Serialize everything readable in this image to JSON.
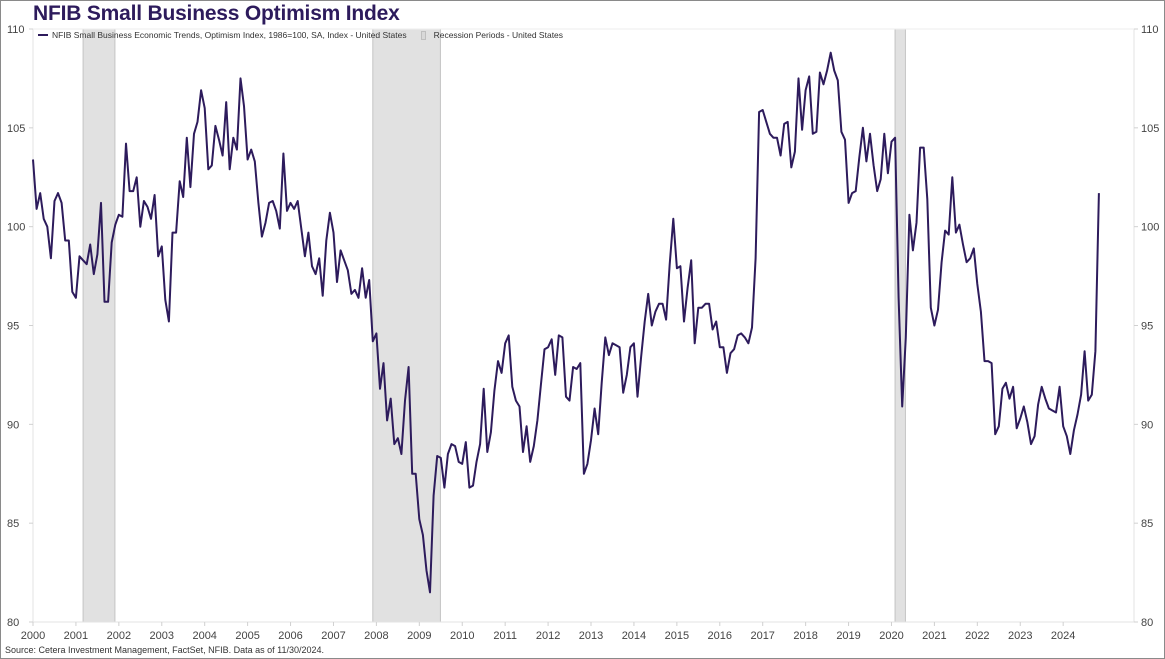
{
  "chart_data": {
    "type": "line",
    "title": "NFIB Small Business Optimism Index",
    "xlabel": "",
    "ylabel": "",
    "ylim": [
      80,
      110
    ],
    "yticks": [
      "80",
      "85",
      "90",
      "95",
      "100",
      "105",
      "110"
    ],
    "xticks": [
      "2000",
      "2001",
      "2002",
      "2003",
      "2004",
      "2005",
      "2006",
      "2007",
      "2008",
      "2009",
      "2010",
      "2011",
      "2012",
      "2013",
      "2014",
      "2015",
      "2016",
      "2017",
      "2018",
      "2019",
      "2020",
      "2021",
      "2022",
      "2023",
      "2024"
    ],
    "x_start": "2000-01",
    "x_frequency": "monthly",
    "grid": false,
    "legend_position": "top-left",
    "legend": [
      {
        "label": "NFIB Small Business Economic Trends, Optimism Index, 1986=100, SA, Index - United States",
        "type": "line"
      },
      {
        "label": "Recession Periods - United States",
        "type": "shade"
      }
    ],
    "recessions": [
      {
        "start": "2001-03",
        "end": "2001-11"
      },
      {
        "start": "2007-12",
        "end": "2009-06"
      },
      {
        "start": "2020-02",
        "end": "2020-04"
      }
    ],
    "series": [
      {
        "name": "NFIB Small Business Economic Trends, Optimism Index, 1986=100, SA, Index - United States",
        "color": "#2d1b5c",
        "values": [
          103.4,
          100.9,
          101.7,
          100.4,
          100.0,
          98.4,
          101.3,
          101.7,
          101.2,
          99.3,
          99.3,
          96.7,
          96.4,
          98.5,
          98.3,
          98.1,
          99.1,
          97.6,
          98.6,
          101.2,
          96.2,
          96.2,
          99.2,
          100.1,
          100.6,
          100.5,
          104.2,
          101.8,
          101.8,
          102.5,
          100.0,
          101.3,
          101.0,
          100.4,
          101.6,
          98.5,
          99.0,
          96.3,
          95.2,
          99.7,
          99.7,
          102.3,
          101.5,
          104.5,
          102.0,
          104.7,
          105.3,
          106.9,
          106.0,
          102.9,
          103.1,
          105.1,
          104.4,
          103.6,
          106.3,
          102.9,
          104.5,
          103.9,
          107.5,
          106.1,
          103.4,
          103.9,
          103.3,
          101.2,
          99.5,
          100.2,
          101.2,
          101.3,
          100.8,
          99.9,
          103.7,
          100.8,
          101.2,
          100.9,
          101.3,
          99.9,
          98.5,
          99.7,
          98.0,
          97.6,
          98.4,
          96.5,
          99.3,
          100.7,
          99.7,
          97.2,
          98.8,
          98.3,
          97.8,
          96.6,
          96.8,
          96.4,
          97.9,
          96.4,
          97.3,
          94.2,
          94.6,
          91.8,
          93.1,
          90.2,
          91.3,
          89.0,
          89.3,
          88.5,
          91.2,
          92.9,
          87.5,
          87.5,
          85.2,
          84.4,
          82.6,
          81.5,
          86.4,
          88.4,
          88.3,
          86.8,
          88.5,
          89.0,
          88.9,
          88.1,
          88.0,
          89.1,
          86.8,
          86.9,
          88.1,
          89.0,
          91.8,
          88.6,
          89.6,
          91.7,
          93.2,
          92.6,
          94.1,
          94.5,
          91.9,
          91.2,
          90.9,
          88.6,
          89.9,
          88.1,
          88.9,
          90.2,
          92.0,
          93.8,
          93.9,
          94.3,
          92.5,
          94.5,
          94.4,
          91.4,
          91.2,
          92.9,
          92.8,
          93.1,
          87.5,
          88.0,
          89.2,
          90.8,
          89.5,
          92.1,
          94.4,
          93.5,
          94.1,
          94.0,
          93.9,
          91.6,
          92.5,
          93.9,
          94.1,
          91.4,
          93.4,
          95.2,
          96.6,
          95.0,
          95.7,
          96.1,
          96.1,
          95.3,
          98.1,
          100.4,
          97.9,
          98.0,
          95.2,
          96.9,
          98.3,
          94.1,
          95.9,
          95.9,
          96.1,
          96.1,
          94.8,
          95.2,
          93.9,
          93.9,
          92.6,
          93.6,
          93.8,
          94.5,
          94.6,
          94.4,
          94.1,
          94.9,
          98.4,
          105.8,
          105.9,
          105.3,
          104.7,
          104.5,
          104.5,
          103.6,
          105.2,
          105.3,
          103.0,
          103.8,
          107.5,
          104.9,
          106.9,
          107.6,
          104.7,
          104.8,
          107.8,
          107.2,
          107.9,
          108.8,
          107.9,
          107.4,
          104.8,
          104.4,
          101.2,
          101.7,
          101.8,
          103.5,
          105.0,
          103.3,
          104.7,
          103.1,
          101.8,
          102.4,
          104.7,
          102.7,
          104.3,
          104.5,
          96.4,
          90.9,
          94.4,
          100.6,
          98.8,
          100.2,
          104.0,
          104.0,
          101.4,
          95.9,
          95.0,
          95.8,
          98.2,
          99.8,
          99.6,
          102.5,
          99.7,
          100.1,
          99.1,
          98.2,
          98.4,
          98.9,
          97.1,
          95.7,
          93.2,
          93.2,
          93.1,
          89.5,
          89.9,
          91.8,
          92.1,
          91.3,
          91.9,
          89.8,
          90.3,
          90.9,
          90.1,
          89.0,
          89.4,
          91.0,
          91.9,
          91.3,
          90.8,
          90.7,
          90.6,
          91.9,
          89.9,
          89.4,
          88.5,
          89.7,
          90.5,
          91.5,
          93.7,
          91.2,
          91.5,
          93.7,
          101.7
        ]
      }
    ]
  },
  "page": {
    "title": "NFIB Small Business Optimism Index",
    "legend_series_label": "NFIB Small Business Economic Trends, Optimism Index, 1986=100, SA, Index - United States",
    "legend_recession_label": "Recession Periods - United States",
    "source": "Source: Cetera Investment Management, FactSet, NFIB. Data as of 11/30/2024."
  }
}
